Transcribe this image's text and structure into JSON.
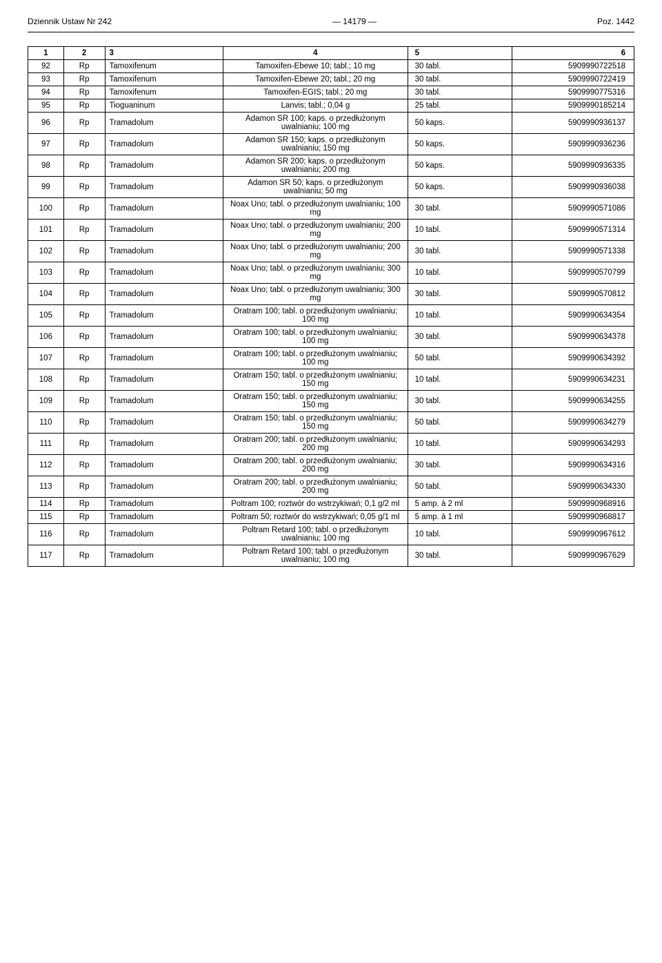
{
  "header": {
    "left": "Dziennik Ustaw Nr 242",
    "center": "— 14179 —",
    "right": "Poz. 1442"
  },
  "columns": [
    "1",
    "2",
    "3",
    "4",
    "5",
    "6"
  ],
  "rows": [
    {
      "c1": "92",
      "c2": "Rp",
      "c3": "Tamoxifenum",
      "c4": "Tamoxifen-Ebewe 10; tabl.; 10 mg",
      "c5": "30 tabl.",
      "c6": "5909990722518"
    },
    {
      "c1": "93",
      "c2": "Rp",
      "c3": "Tamoxifenum",
      "c4": "Tamoxifen-Ebewe 20; tabl.; 20 mg",
      "c5": "30 tabl.",
      "c6": "5909990722419"
    },
    {
      "c1": "94",
      "c2": "Rp",
      "c3": "Tamoxifenum",
      "c4": "Tamoxifen-EGIS; tabl.; 20 mg",
      "c5": "30 tabl.",
      "c6": "5909990775316"
    },
    {
      "c1": "95",
      "c2": "Rp",
      "c3": "Tioguaninum",
      "c4": "Lanvis; tabl.; 0,04 g",
      "c5": "25 tabl.",
      "c6": "5909990185214"
    },
    {
      "c1": "96",
      "c2": "Rp",
      "c3": "Tramadolum",
      "c4": "Adamon SR 100; kaps. o przedłużonym uwalnianiu; 100 mg",
      "c5": "50 kaps.",
      "c6": "5909990936137"
    },
    {
      "c1": "97",
      "c2": "Rp",
      "c3": "Tramadolum",
      "c4": "Adamon SR 150; kaps. o przedłużonym uwalnianiu; 150 mg",
      "c5": "50 kaps.",
      "c6": "5909990936236"
    },
    {
      "c1": "98",
      "c2": "Rp",
      "c3": "Tramadolum",
      "c4": "Adamon SR 200; kaps. o przedłużonym uwalnianiu; 200 mg",
      "c5": "50 kaps.",
      "c6": "5909990936335"
    },
    {
      "c1": "99",
      "c2": "Rp",
      "c3": "Tramadolum",
      "c4": "Adamon SR 50; kaps. o przedłużonym uwalnianiu; 50 mg",
      "c5": "50 kaps.",
      "c6": "5909990936038"
    },
    {
      "c1": "100",
      "c2": "Rp",
      "c3": "Tramadolum",
      "c4": "Noax Uno; tabl. o przedłużonym uwalnianiu; 100 mg",
      "c5": "30 tabl.",
      "c6": "5909990571086"
    },
    {
      "c1": "101",
      "c2": "Rp",
      "c3": "Tramadolum",
      "c4": "Noax Uno; tabl. o przedłużonym uwalnianiu; 200 mg",
      "c5": "10 tabl.",
      "c6": "5909990571314"
    },
    {
      "c1": "102",
      "c2": "Rp",
      "c3": "Tramadolum",
      "c4": "Noax Uno; tabl. o przedłużonym uwalnianiu; 200 mg",
      "c5": "30 tabl.",
      "c6": "5909990571338"
    },
    {
      "c1": "103",
      "c2": "Rp",
      "c3": "Tramadolum",
      "c4": "Noax Uno; tabl. o przedłużonym uwalnianiu; 300 mg",
      "c5": "10 tabl.",
      "c6": "5909990570799"
    },
    {
      "c1": "104",
      "c2": "Rp",
      "c3": "Tramadolum",
      "c4": "Noax Uno; tabl. o przedłużonym uwalnianiu; 300 mg",
      "c5": "30 tabl.",
      "c6": "5909990570812"
    },
    {
      "c1": "105",
      "c2": "Rp",
      "c3": "Tramadolum",
      "c4": "Oratram 100; tabl. o przedłużonym uwalnianiu; 100 mg",
      "c5": "10 tabl.",
      "c6": "5909990634354"
    },
    {
      "c1": "106",
      "c2": "Rp",
      "c3": "Tramadolum",
      "c4": "Oratram 100; tabl. o przedłużonym uwalnianiu; 100 mg",
      "c5": "30 tabl.",
      "c6": "5909990634378"
    },
    {
      "c1": "107",
      "c2": "Rp",
      "c3": "Tramadolum",
      "c4": "Oratram 100; tabl. o przedłużonym uwalnianiu; 100 mg",
      "c5": "50 tabl.",
      "c6": "5909990634392"
    },
    {
      "c1": "108",
      "c2": "Rp",
      "c3": "Tramadolum",
      "c4": "Oratram 150; tabl. o przedłużonym uwalnianiu; 150 mg",
      "c5": "10 tabl.",
      "c6": "5909990634231"
    },
    {
      "c1": "109",
      "c2": "Rp",
      "c3": "Tramadolum",
      "c4": "Oratram 150; tabl. o przedłużonym uwalnianiu; 150 mg",
      "c5": "30 tabl.",
      "c6": "5909990634255"
    },
    {
      "c1": "110",
      "c2": "Rp",
      "c3": "Tramadolum",
      "c4": "Oratram 150; tabl. o przedłużonym uwalnianiu; 150 mg",
      "c5": "50 tabl.",
      "c6": "5909990634279"
    },
    {
      "c1": "111",
      "c2": "Rp",
      "c3": "Tramadolum",
      "c4": "Oratram 200; tabl. o przedłużonym uwalnianiu; 200 mg",
      "c5": "10 tabl.",
      "c6": "5909990634293"
    },
    {
      "c1": "112",
      "c2": "Rp",
      "c3": "Tramadolum",
      "c4": "Oratram 200; tabl. o przedłużonym uwalnianiu; 200 mg",
      "c5": "30 tabl.",
      "c6": "5909990634316"
    },
    {
      "c1": "113",
      "c2": "Rp",
      "c3": "Tramadolum",
      "c4": "Oratram 200; tabl. o przedłużonym uwalnianiu; 200 mg",
      "c5": "50 tabl.",
      "c6": "5909990634330"
    },
    {
      "c1": "114",
      "c2": "Rp",
      "c3": "Tramadolum",
      "c4": "Poltram 100; roztwór do wstrzykiwań; 0,1 g/2 ml",
      "c5": "5 amp. à 2 ml",
      "c6": "5909990968916"
    },
    {
      "c1": "115",
      "c2": "Rp",
      "c3": "Tramadolum",
      "c4": "Poltram 50; roztwór do wstrzykiwań; 0,05 g/1 ml",
      "c5": "5 amp. à 1 ml",
      "c6": "5909990968817"
    },
    {
      "c1": "116",
      "c2": "Rp",
      "c3": "Tramadolum",
      "c4": "Poltram Retard 100; tabl. o przedłużonym uwalnianiu; 100 mg",
      "c5": "10 tabl.",
      "c6": "5909990967612"
    },
    {
      "c1": "117",
      "c2": "Rp",
      "c3": "Tramadolum",
      "c4": "Poltram Retard 100; tabl. o przedłużonym uwalnianiu; 100 mg",
      "c5": "30 tabl.",
      "c6": "5909990967629"
    }
  ]
}
